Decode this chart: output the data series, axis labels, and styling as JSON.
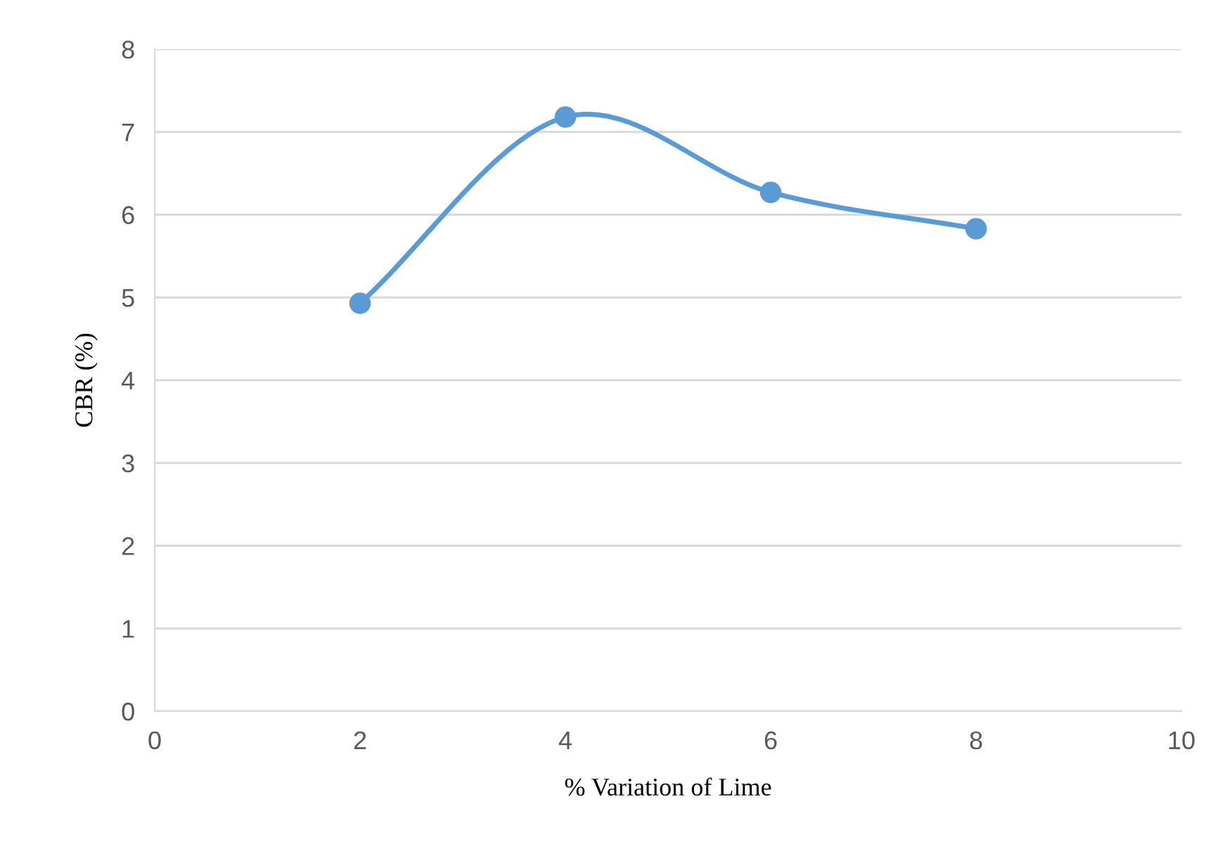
{
  "chart_data": {
    "type": "line",
    "xlabel": "% Variation of Lime",
    "ylabel": "CBR (%)",
    "x": [
      2,
      4,
      6,
      8
    ],
    "series": [
      {
        "color": "#5b9bd5",
        "values": [
          4.93,
          7.18,
          6.27,
          5.83
        ]
      }
    ],
    "xlim": [
      0,
      10
    ],
    "xticks": [
      0,
      2,
      4,
      6,
      8,
      10
    ],
    "ylim": [
      0,
      8
    ],
    "yticks": [
      0,
      1,
      2,
      3,
      4,
      5,
      6,
      7,
      8
    ],
    "grid": "y",
    "marker": "circle",
    "line_style": "solid"
  }
}
